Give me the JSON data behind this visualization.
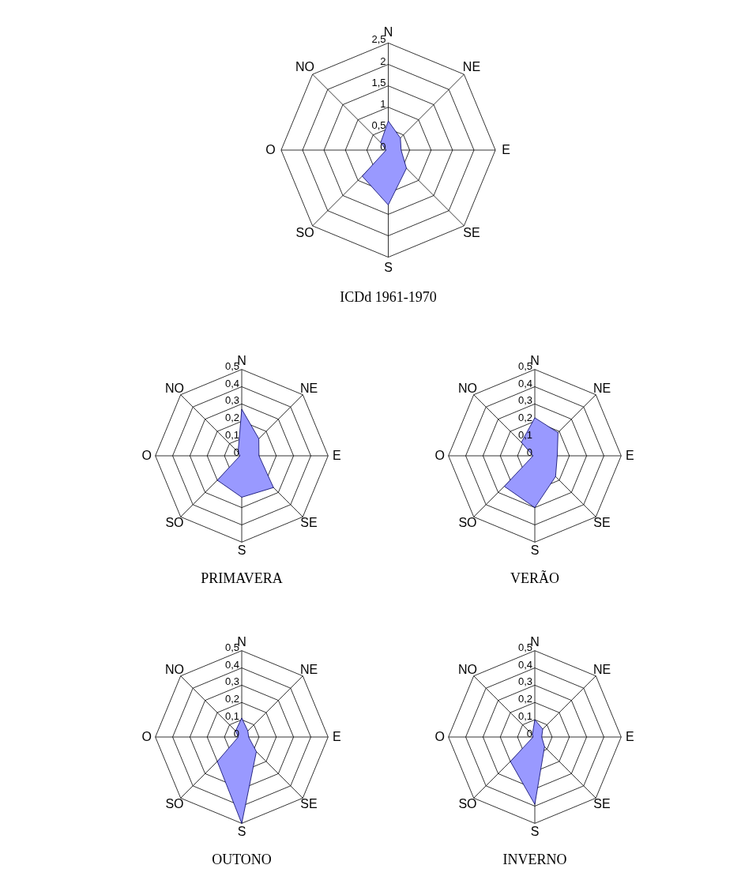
{
  "chart_data": [
    {
      "type": "radar",
      "title": "ICDd 1961-1970",
      "categories": [
        "N",
        "NE",
        "E",
        "SE",
        "S",
        "SO",
        "O",
        "NO"
      ],
      "ylim": [
        0,
        2.5
      ],
      "yticks": [
        0,
        {
          "value": 0.5,
          "label": "0,5"
        },
        1,
        {
          "value": 1.5,
          "label": "1,5"
        },
        2,
        {
          "value": 2.5,
          "label": "2,5"
        }
      ],
      "grid": true,
      "series": [
        {
          "color": "#9999ff",
          "values": [
            0.68,
            0.4,
            0.3,
            0.6,
            1.28,
            0.86,
            0.05,
            0.25
          ]
        }
      ]
    },
    {
      "type": "radar",
      "title": "PRIMAVERA",
      "categories": [
        "N",
        "NE",
        "E",
        "SE",
        "S",
        "SO",
        "O",
        "NO"
      ],
      "ylim": [
        0,
        0.5
      ],
      "yticks": [
        0,
        {
          "value": 0.1,
          "label": "0,1"
        },
        {
          "value": 0.2,
          "label": "0,2"
        },
        {
          "value": 0.3,
          "label": "0,3"
        },
        {
          "value": 0.4,
          "label": "0,4"
        },
        {
          "value": 0.5,
          "label": "0,5"
        }
      ],
      "grid": true,
      "series": [
        {
          "color": "#9999ff",
          "values": [
            0.27,
            0.14,
            0.1,
            0.26,
            0.24,
            0.2,
            0.01,
            0.03
          ]
        }
      ]
    },
    {
      "type": "radar",
      "title": "VERÃO",
      "categories": [
        "N",
        "NE",
        "E",
        "SE",
        "S",
        "SO",
        "O",
        "NO"
      ],
      "ylim": [
        0,
        0.5
      ],
      "yticks": [
        0,
        {
          "value": 0.1,
          "label": "0,1"
        },
        {
          "value": 0.2,
          "label": "0,2"
        },
        {
          "value": 0.3,
          "label": "0,3"
        },
        {
          "value": 0.4,
          "label": "0,4"
        },
        {
          "value": 0.5,
          "label": "0,5"
        }
      ],
      "grid": true,
      "series": [
        {
          "color": "#9999ff",
          "values": [
            0.22,
            0.19,
            0.13,
            0.17,
            0.3,
            0.25,
            0.01,
            0.11
          ]
        }
      ]
    },
    {
      "type": "radar",
      "title": "OUTONO",
      "categories": [
        "N",
        "NE",
        "E",
        "SE",
        "S",
        "SO",
        "O",
        "NO"
      ],
      "ylim": [
        0,
        0.5
      ],
      "yticks": [
        0,
        {
          "value": 0.1,
          "label": "0,1"
        },
        {
          "value": 0.2,
          "label": "0,2"
        },
        {
          "value": 0.3,
          "label": "0,3"
        },
        {
          "value": 0.4,
          "label": "0,4"
        },
        {
          "value": 0.5,
          "label": "0,5"
        }
      ],
      "grid": true,
      "series": [
        {
          "color": "#9999ff",
          "values": [
            0.11,
            0.05,
            0.04,
            0.12,
            0.5,
            0.2,
            0.02,
            0.05
          ]
        }
      ]
    },
    {
      "type": "radar",
      "title": "INVERNO",
      "categories": [
        "N",
        "NE",
        "E",
        "SE",
        "S",
        "SO",
        "O",
        "NO"
      ],
      "ylim": [
        0,
        0.5
      ],
      "yticks": [
        0,
        {
          "value": 0.1,
          "label": "0,1"
        },
        {
          "value": 0.2,
          "label": "0,2"
        },
        {
          "value": 0.3,
          "label": "0,3"
        },
        {
          "value": 0.4,
          "label": "0,4"
        },
        {
          "value": 0.5,
          "label": "0,5"
        }
      ],
      "grid": true,
      "series": [
        {
          "color": "#9999ff",
          "values": [
            0.1,
            0.065,
            0.04,
            0.08,
            0.39,
            0.2,
            0.01,
            0.02
          ]
        }
      ]
    }
  ]
}
